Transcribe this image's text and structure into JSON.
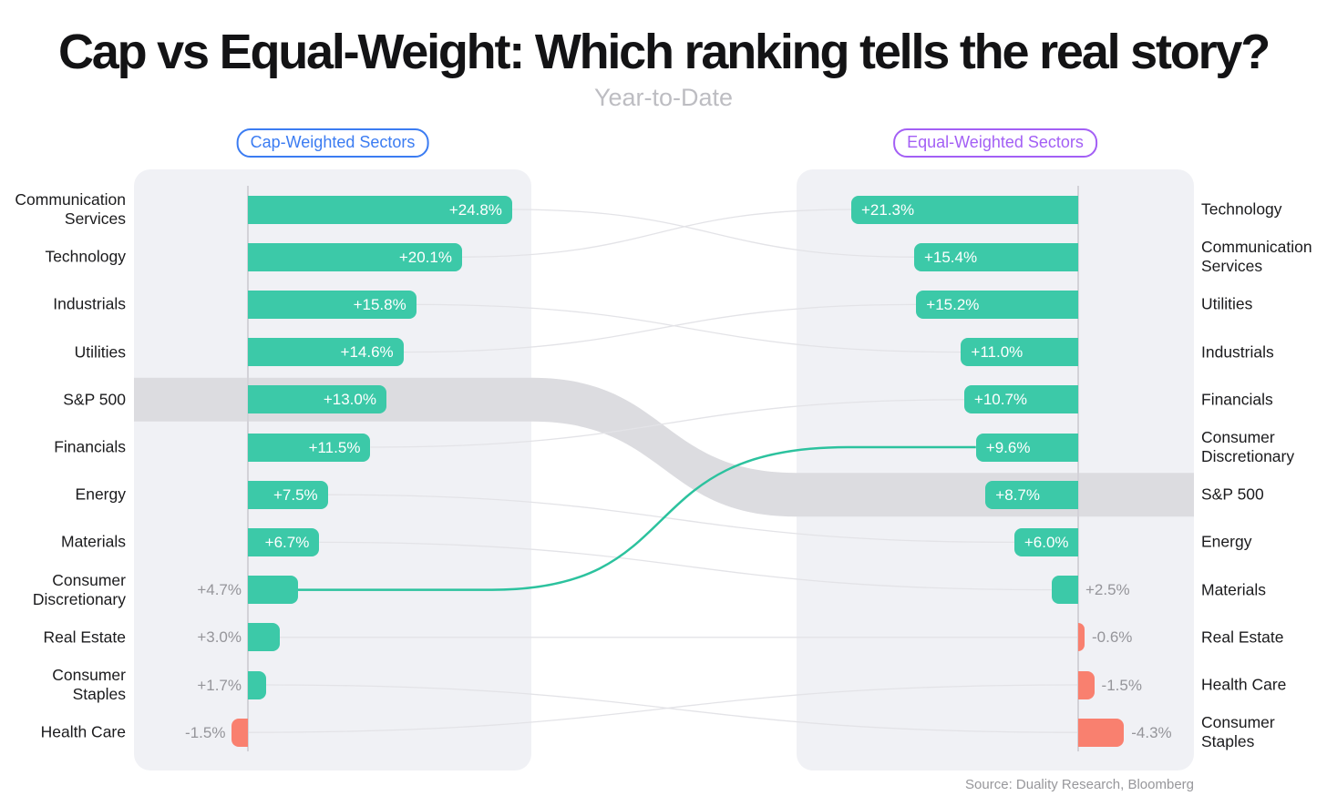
{
  "header": {
    "title": "Cap vs Equal-Weight: Which ranking tells the real story?",
    "subtitle": "Year-to-Date"
  },
  "badges": {
    "left": "Cap-Weighted Sectors",
    "right": "Equal-Weighted Sectors"
  },
  "source": "Source: Duality Research, Bloomberg",
  "colors": {
    "positive": "#3cc9a8",
    "negative": "#f9806f",
    "benchmark_band": "#dcdce0",
    "panel_bg": "#f0f1f5",
    "link": "#e3e3e7",
    "highlight_link": "#2cc29e",
    "badge_left": "#3b7cf2",
    "badge_right": "#a35ff5",
    "axis": "#d3d2d8",
    "title_text": "#131315",
    "muted_text": "#95959a"
  },
  "chart_data": {
    "type": "bar",
    "subtype": "paired-ranked-horizontal-bars-with-bump-links",
    "unit": "%",
    "benchmark": "S&P 500",
    "highlighted_link": "Consumer Discretionary",
    "left_panel": {
      "title": "Cap-Weighted Sectors",
      "rows": [
        {
          "sector": "Communication Services",
          "value": 24.8,
          "label": "+24.8%"
        },
        {
          "sector": "Technology",
          "value": 20.1,
          "label": "+20.1%"
        },
        {
          "sector": "Industrials",
          "value": 15.8,
          "label": "+15.8%"
        },
        {
          "sector": "Utilities",
          "value": 14.6,
          "label": "+14.6%"
        },
        {
          "sector": "S&P 500",
          "value": 13.0,
          "label": "+13.0%"
        },
        {
          "sector": "Financials",
          "value": 11.5,
          "label": "+11.5%"
        },
        {
          "sector": "Energy",
          "value": 7.5,
          "label": "+7.5%"
        },
        {
          "sector": "Materials",
          "value": 6.7,
          "label": "+6.7%"
        },
        {
          "sector": "Consumer Discretionary",
          "value": 4.7,
          "label": "+4.7%"
        },
        {
          "sector": "Real Estate",
          "value": 3.0,
          "label": "+3.0%"
        },
        {
          "sector": "Consumer Staples",
          "value": 1.7,
          "label": "+1.7%"
        },
        {
          "sector": "Health Care",
          "value": -1.5,
          "label": "-1.5%"
        }
      ]
    },
    "right_panel": {
      "title": "Equal-Weighted Sectors",
      "rows": [
        {
          "sector": "Technology",
          "value": 21.3,
          "label": "+21.3%"
        },
        {
          "sector": "Communication Services",
          "value": 15.4,
          "label": "+15.4%"
        },
        {
          "sector": "Utilities",
          "value": 15.2,
          "label": "+15.2%"
        },
        {
          "sector": "Industrials",
          "value": 11.0,
          "label": "+11.0%"
        },
        {
          "sector": "Financials",
          "value": 10.7,
          "label": "+10.7%"
        },
        {
          "sector": "Consumer Discretionary",
          "value": 9.6,
          "label": "+9.6%"
        },
        {
          "sector": "S&P 500",
          "value": 8.7,
          "label": "+8.7%"
        },
        {
          "sector": "Energy",
          "value": 6.0,
          "label": "+6.0%"
        },
        {
          "sector": "Materials",
          "value": 2.5,
          "label": "+2.5%"
        },
        {
          "sector": "Real Estate",
          "value": -0.6,
          "label": "-0.6%"
        },
        {
          "sector": "Health Care",
          "value": -1.5,
          "label": "-1.5%"
        },
        {
          "sector": "Consumer Staples",
          "value": -4.3,
          "label": "-4.3%"
        }
      ]
    }
  }
}
